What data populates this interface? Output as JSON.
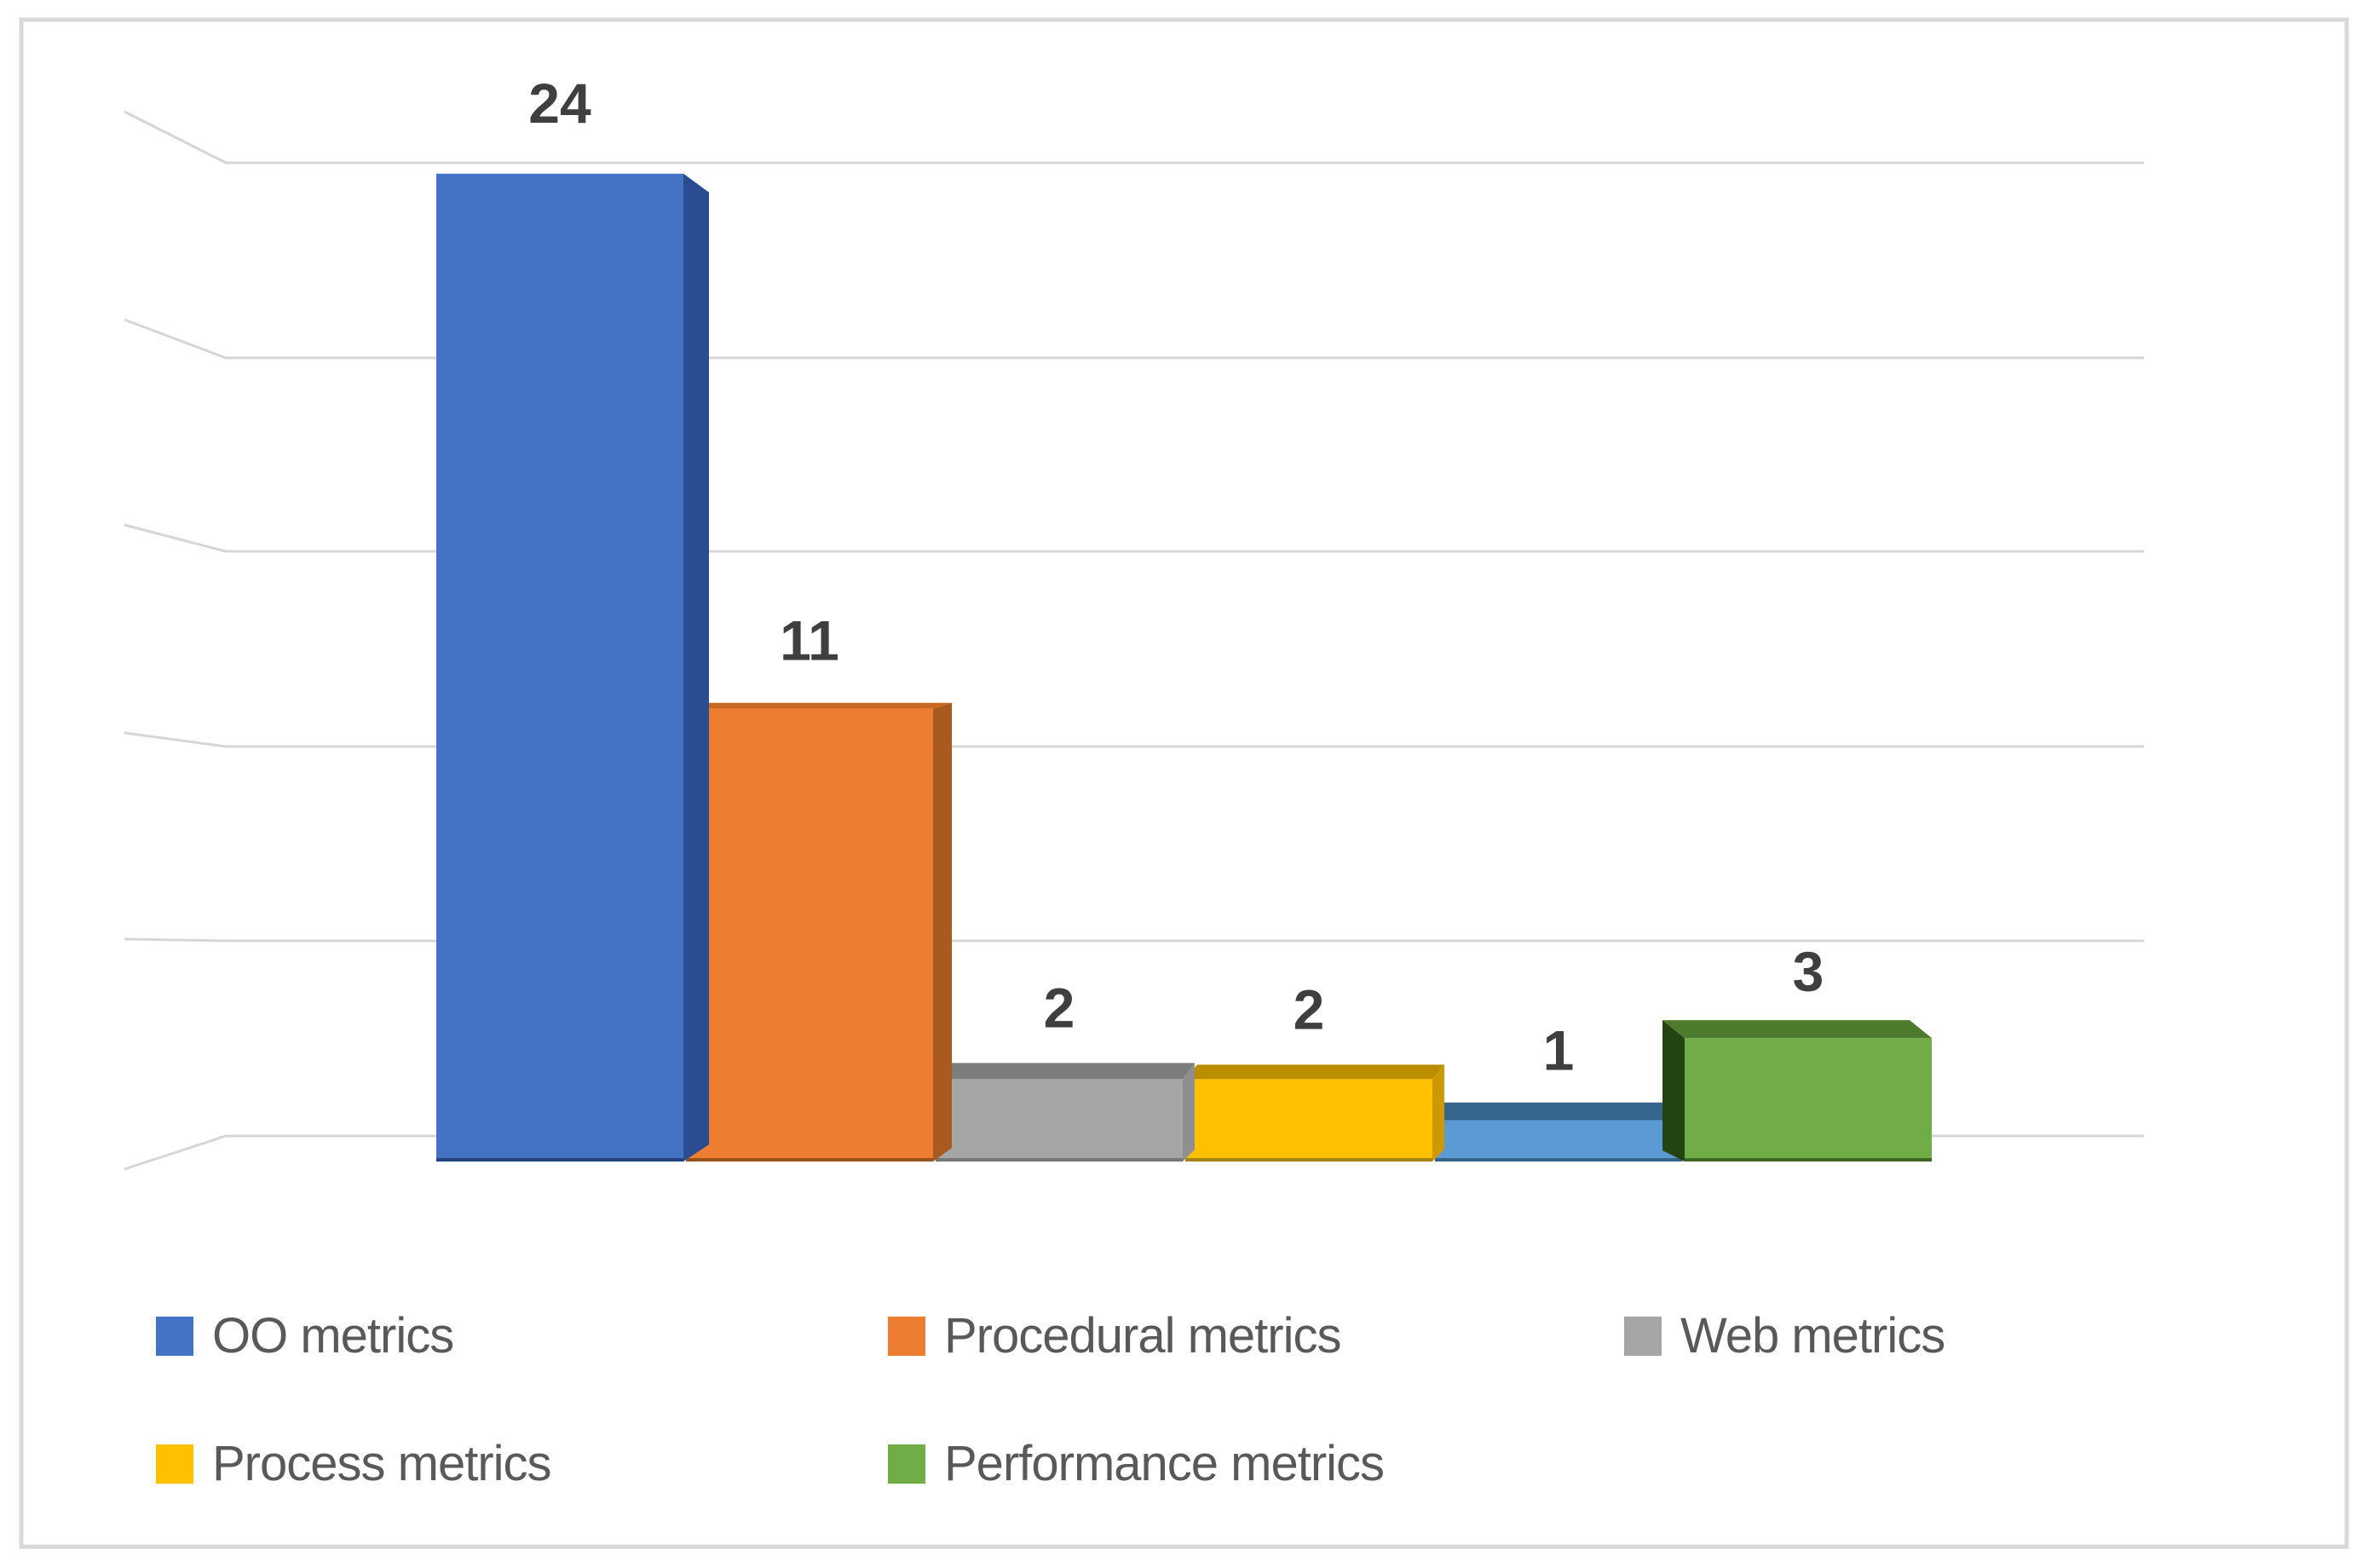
{
  "figure": {
    "kind": "3d-clustered-column-chart",
    "background": "#ffffff",
    "border_color": "#d9d9d9"
  },
  "chart_data": {
    "type": "bar",
    "projection": "3d",
    "title": "",
    "xlabel": "",
    "ylabel": "",
    "axis_tick_labels_visible": false,
    "y_axis": {
      "visible": false,
      "min": 0,
      "max": 25,
      "gridline_count": 6
    },
    "grid": true,
    "legend_position": "bottom",
    "values": [
      24,
      11,
      2,
      2,
      1,
      3
    ],
    "bars": [
      {
        "label": "OO metrics",
        "value": 24,
        "data_label": "24",
        "color": "#4472c4",
        "side_color": "#2a4d91",
        "top_color": "#365d9e",
        "edge_color": "#1f3a6e"
      },
      {
        "label": "Procedural metrics",
        "value": 11,
        "data_label": "11",
        "color": "#ed7d31",
        "side_color": "#a85a1f",
        "top_color": "#c9691f",
        "edge_color": "#8a4a1a"
      },
      {
        "label": "Web metrics",
        "value": 2,
        "data_label": "2",
        "color": "#a5a5a5",
        "side_color": "#8f8f8f",
        "top_color": "#7d7d7d",
        "edge_color": "#6f6f6f"
      },
      {
        "label": "Process metrics",
        "value": 2,
        "data_label": "2",
        "color": "#ffc000",
        "side_color": "#cc9a00",
        "top_color": "#bb8e00",
        "edge_color": "#96751a"
      },
      {
        "label": "",
        "value": 1,
        "data_label": "1",
        "color": "#5b9bd5",
        "side_color": "#497fad",
        "top_color": "#35658c",
        "edge_color": "#2f5a7d"
      },
      {
        "label": "Performance metrics",
        "value": 3,
        "data_label": "3",
        "color": "#70ad47",
        "side_color": "#244313",
        "top_color": "#4e7a2e",
        "edge_color": "#365c1e"
      }
    ],
    "legend": [
      {
        "label": "OO metrics",
        "color": "#4472c4"
      },
      {
        "label": "Procedural metrics",
        "color": "#ed7d31"
      },
      {
        "label": "Web metrics",
        "color": "#a5a5a5"
      },
      {
        "label": "Process metrics",
        "color": "#ffc000"
      },
      {
        "label": "Performance metrics",
        "color": "#70ad47"
      }
    ]
  },
  "colors": {
    "gridline": "#d6d6d6",
    "frame_border": "#d9d9d9",
    "value_label_text": "#3f3f3f",
    "legend_text": "#595959",
    "background": "#ffffff"
  }
}
